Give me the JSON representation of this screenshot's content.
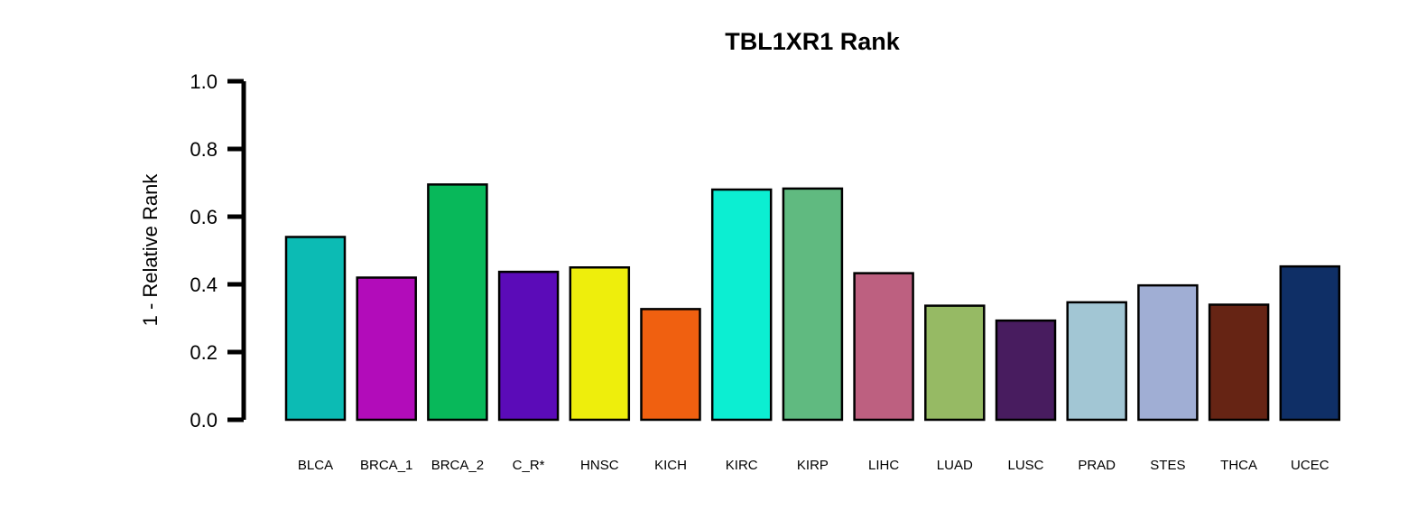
{
  "chart_data": {
    "type": "bar",
    "title": "TBL1XR1 Rank",
    "xlabel": "",
    "ylabel": "1 - Relative Rank",
    "ylim": [
      0,
      1
    ],
    "yticks": [
      "0.0",
      "0.2",
      "0.4",
      "0.6",
      "0.8",
      "1.0"
    ],
    "grid": false,
    "legend": "none",
    "categories": [
      "BLCA",
      "BRCA_1",
      "BRCA_2",
      "C_R*",
      "HNSC",
      "KICH",
      "KIRC",
      "KIRP",
      "LIHC",
      "LUAD",
      "LUSC",
      "PRAD",
      "STES",
      "THCA",
      "UCEC"
    ],
    "values": [
      0.54,
      0.42,
      0.695,
      0.437,
      0.45,
      0.327,
      0.68,
      0.683,
      0.433,
      0.337,
      0.293,
      0.347,
      0.397,
      0.34,
      0.453
    ],
    "colors": [
      "#0CBBB4",
      "#B20CBA",
      "#08B85A",
      "#5B0BB8",
      "#EEEE0C",
      "#F06010",
      "#0CEED2",
      "#60BA80",
      "#BD6080",
      "#96BA64",
      "#481C5F",
      "#A2C6D4",
      "#A0AED4",
      "#662414",
      "#0F2F66"
    ]
  }
}
